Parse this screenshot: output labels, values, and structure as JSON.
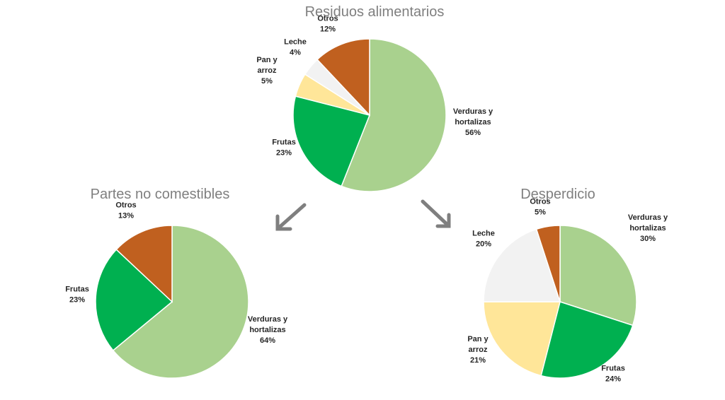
{
  "chart_data": [
    {
      "type": "pie",
      "title": "Residuos alimentarios",
      "categories": [
        "Verduras y hortalizas",
        "Frutas",
        "Pan y arroz",
        "Leche",
        "Otros"
      ],
      "values": [
        56,
        23,
        5,
        4,
        12
      ],
      "value_suffix": "%",
      "colors": [
        "#a9d18e",
        "#00b050",
        "#ffe699",
        "#f2f2f2",
        "#c0601f"
      ]
    },
    {
      "type": "pie",
      "title": "Partes no comestibles",
      "categories": [
        "Verduras y hortalizas",
        "Frutas",
        "Otros"
      ],
      "values": [
        64,
        23,
        13
      ],
      "value_suffix": "%",
      "colors": [
        "#a9d18e",
        "#00b050",
        "#c0601f"
      ]
    },
    {
      "type": "pie",
      "title": "Desperdicio",
      "categories": [
        "Verduras y hortalizas",
        "Frutas",
        "Pan y arroz",
        "Leche",
        "Otros"
      ],
      "values": [
        30,
        24,
        21,
        20,
        5
      ],
      "value_suffix": "%",
      "colors": [
        "#a9d18e",
        "#00b050",
        "#ffe699",
        "#f2f2f2",
        "#c0601f"
      ]
    }
  ]
}
